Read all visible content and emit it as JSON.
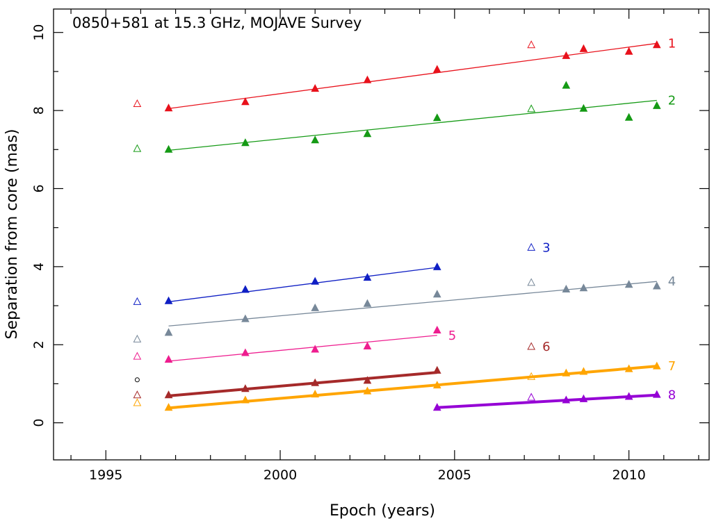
{
  "chart_data": {
    "type": "scatter",
    "title": "0850+581 at 15.3 GHz, MOJAVE Survey",
    "xlabel": "Epoch (years)",
    "ylabel": "Separation from core (mas)",
    "xlim": [
      1993.5,
      2012.3
    ],
    "ylim": [
      -0.95,
      10.6
    ],
    "x_ticks": [
      1995,
      2000,
      2005,
      2010
    ],
    "y_ticks": [
      0,
      2,
      4,
      6,
      8,
      10
    ],
    "grid": false,
    "legend": "none",
    "series": [
      {
        "name": "1",
        "color": "#e8111b",
        "line_width": 1.3,
        "fit": [
          [
            1996.8,
            8.05
          ],
          [
            2010.8,
            9.72
          ]
        ],
        "points": [
          {
            "x": 1995.9,
            "y": 8.17,
            "filled": false
          },
          {
            "x": 1996.8,
            "y": 8.06,
            "filled": true
          },
          {
            "x": 1999.0,
            "y": 8.22,
            "filled": true
          },
          {
            "x": 2001.0,
            "y": 8.56,
            "filled": true
          },
          {
            "x": 2002.5,
            "y": 8.78,
            "filled": true
          },
          {
            "x": 2004.5,
            "y": 9.05,
            "filled": true
          },
          {
            "x": 2007.2,
            "y": 9.68,
            "filled": false
          },
          {
            "x": 2008.2,
            "y": 9.4,
            "filled": true
          },
          {
            "x": 2008.7,
            "y": 9.58,
            "filled": true
          },
          {
            "x": 2010.0,
            "y": 9.51,
            "filled": true
          },
          {
            "x": 2010.8,
            "y": 9.68,
            "filled": true
          }
        ]
      },
      {
        "name": "2",
        "color": "#159a15",
        "line_width": 1.3,
        "fit": [
          [
            1996.8,
            6.98
          ],
          [
            2010.8,
            8.26
          ]
        ],
        "points": [
          {
            "x": 1995.9,
            "y": 7.02,
            "filled": false
          },
          {
            "x": 1996.8,
            "y": 7.0,
            "filled": true
          },
          {
            "x": 1999.0,
            "y": 7.17,
            "filled": true
          },
          {
            "x": 2001.0,
            "y": 7.24,
            "filled": true
          },
          {
            "x": 2002.5,
            "y": 7.4,
            "filled": true
          },
          {
            "x": 2004.5,
            "y": 7.81,
            "filled": true
          },
          {
            "x": 2007.2,
            "y": 8.04,
            "filled": false
          },
          {
            "x": 2008.2,
            "y": 8.64,
            "filled": true
          },
          {
            "x": 2008.7,
            "y": 8.05,
            "filled": true
          },
          {
            "x": 2010.0,
            "y": 7.82,
            "filled": true
          },
          {
            "x": 2010.8,
            "y": 8.12,
            "filled": true
          }
        ]
      },
      {
        "name": "3",
        "color": "#0f1fc4",
        "line_width": 1.3,
        "fit": [
          [
            1996.8,
            3.1
          ],
          [
            2004.5,
            3.98
          ]
        ],
        "points": [
          {
            "x": 1995.9,
            "y": 3.1,
            "filled": false
          },
          {
            "x": 1996.8,
            "y": 3.12,
            "filled": true
          },
          {
            "x": 1999.0,
            "y": 3.41,
            "filled": true
          },
          {
            "x": 2001.0,
            "y": 3.62,
            "filled": true
          },
          {
            "x": 2002.5,
            "y": 3.72,
            "filled": true
          },
          {
            "x": 2004.5,
            "y": 3.99,
            "filled": true
          },
          {
            "x": 2007.2,
            "y": 4.49,
            "filled": false
          }
        ]
      },
      {
        "name": "4",
        "color": "#778899",
        "line_width": 1.3,
        "fit": [
          [
            1996.8,
            2.48
          ],
          [
            2010.8,
            3.62
          ]
        ],
        "points": [
          {
            "x": 1995.9,
            "y": 2.14,
            "filled": false
          },
          {
            "x": 1996.8,
            "y": 2.31,
            "filled": true
          },
          {
            "x": 1999.0,
            "y": 2.66,
            "filled": true
          },
          {
            "x": 2001.0,
            "y": 2.94,
            "filled": true
          },
          {
            "x": 2002.5,
            "y": 3.05,
            "filled": true
          },
          {
            "x": 2004.5,
            "y": 3.29,
            "filled": true
          },
          {
            "x": 2007.2,
            "y": 3.59,
            "filled": false
          },
          {
            "x": 2008.2,
            "y": 3.42,
            "filled": true
          },
          {
            "x": 2008.7,
            "y": 3.45,
            "filled": true
          },
          {
            "x": 2010.0,
            "y": 3.54,
            "filled": true
          },
          {
            "x": 2010.8,
            "y": 3.5,
            "filled": true
          }
        ]
      },
      {
        "name": "5",
        "color": "#ee1d8f",
        "line_width": 1.3,
        "fit": [
          [
            1996.8,
            1.58
          ],
          [
            2004.5,
            2.24
          ]
        ],
        "points": [
          {
            "x": 1995.9,
            "y": 1.7,
            "filled": false
          },
          {
            "x": 1996.8,
            "y": 1.62,
            "filled": true
          },
          {
            "x": 1999.0,
            "y": 1.79,
            "filled": true
          },
          {
            "x": 2001.0,
            "y": 1.88,
            "filled": true
          },
          {
            "x": 2002.5,
            "y": 1.96,
            "filled": true
          },
          {
            "x": 2004.5,
            "y": 2.37,
            "filled": true
          }
        ]
      },
      {
        "name": "6",
        "color": "#a52a2a",
        "line_width": 4,
        "fit": [
          [
            1996.8,
            0.69
          ],
          [
            2004.5,
            1.29
          ]
        ],
        "points": [
          {
            "x": 1995.9,
            "y": 0.71,
            "filled": false
          },
          {
            "x": 1996.8,
            "y": 0.71,
            "filled": true
          },
          {
            "x": 1999.0,
            "y": 0.87,
            "filled": true
          },
          {
            "x": 2001.0,
            "y": 1.02,
            "filled": true
          },
          {
            "x": 2002.5,
            "y": 1.08,
            "filled": true
          },
          {
            "x": 2004.5,
            "y": 1.34,
            "filled": true
          },
          {
            "x": 2007.2,
            "y": 1.95,
            "filled": false
          }
        ]
      },
      {
        "name": "7",
        "color": "#ffa500",
        "line_width": 4,
        "fit": [
          [
            1996.8,
            0.38
          ],
          [
            2010.8,
            1.45
          ]
        ],
        "points": [
          {
            "x": 1995.9,
            "y": 0.51,
            "filled": false
          },
          {
            "x": 1996.8,
            "y": 0.39,
            "filled": true
          },
          {
            "x": 1999.0,
            "y": 0.58,
            "filled": true
          },
          {
            "x": 2001.0,
            "y": 0.73,
            "filled": true
          },
          {
            "x": 2002.5,
            "y": 0.81,
            "filled": true
          },
          {
            "x": 2004.5,
            "y": 0.96,
            "filled": true
          },
          {
            "x": 2007.2,
            "y": 1.18,
            "filled": false
          },
          {
            "x": 2008.2,
            "y": 1.27,
            "filled": true
          },
          {
            "x": 2008.7,
            "y": 1.31,
            "filled": true
          },
          {
            "x": 2010.0,
            "y": 1.38,
            "filled": true
          },
          {
            "x": 2010.8,
            "y": 1.45,
            "filled": true
          }
        ]
      },
      {
        "name": "8",
        "color": "#9500d5",
        "line_width": 4,
        "fit": [
          [
            2004.5,
            0.39
          ],
          [
            2010.8,
            0.71
          ]
        ],
        "points": [
          {
            "x": 2004.5,
            "y": 0.39,
            "filled": true
          },
          {
            "x": 2007.2,
            "y": 0.65,
            "filled": false
          },
          {
            "x": 2008.2,
            "y": 0.58,
            "filled": true
          },
          {
            "x": 2008.7,
            "y": 0.61,
            "filled": true
          },
          {
            "x": 2010.0,
            "y": 0.67,
            "filled": true
          },
          {
            "x": 2010.8,
            "y": 0.72,
            "filled": true
          }
        ]
      }
    ],
    "extra_points": [
      {
        "x": 1995.9,
        "y": 1.1,
        "marker": "circle",
        "color": "#000000",
        "filled": false
      }
    ]
  }
}
